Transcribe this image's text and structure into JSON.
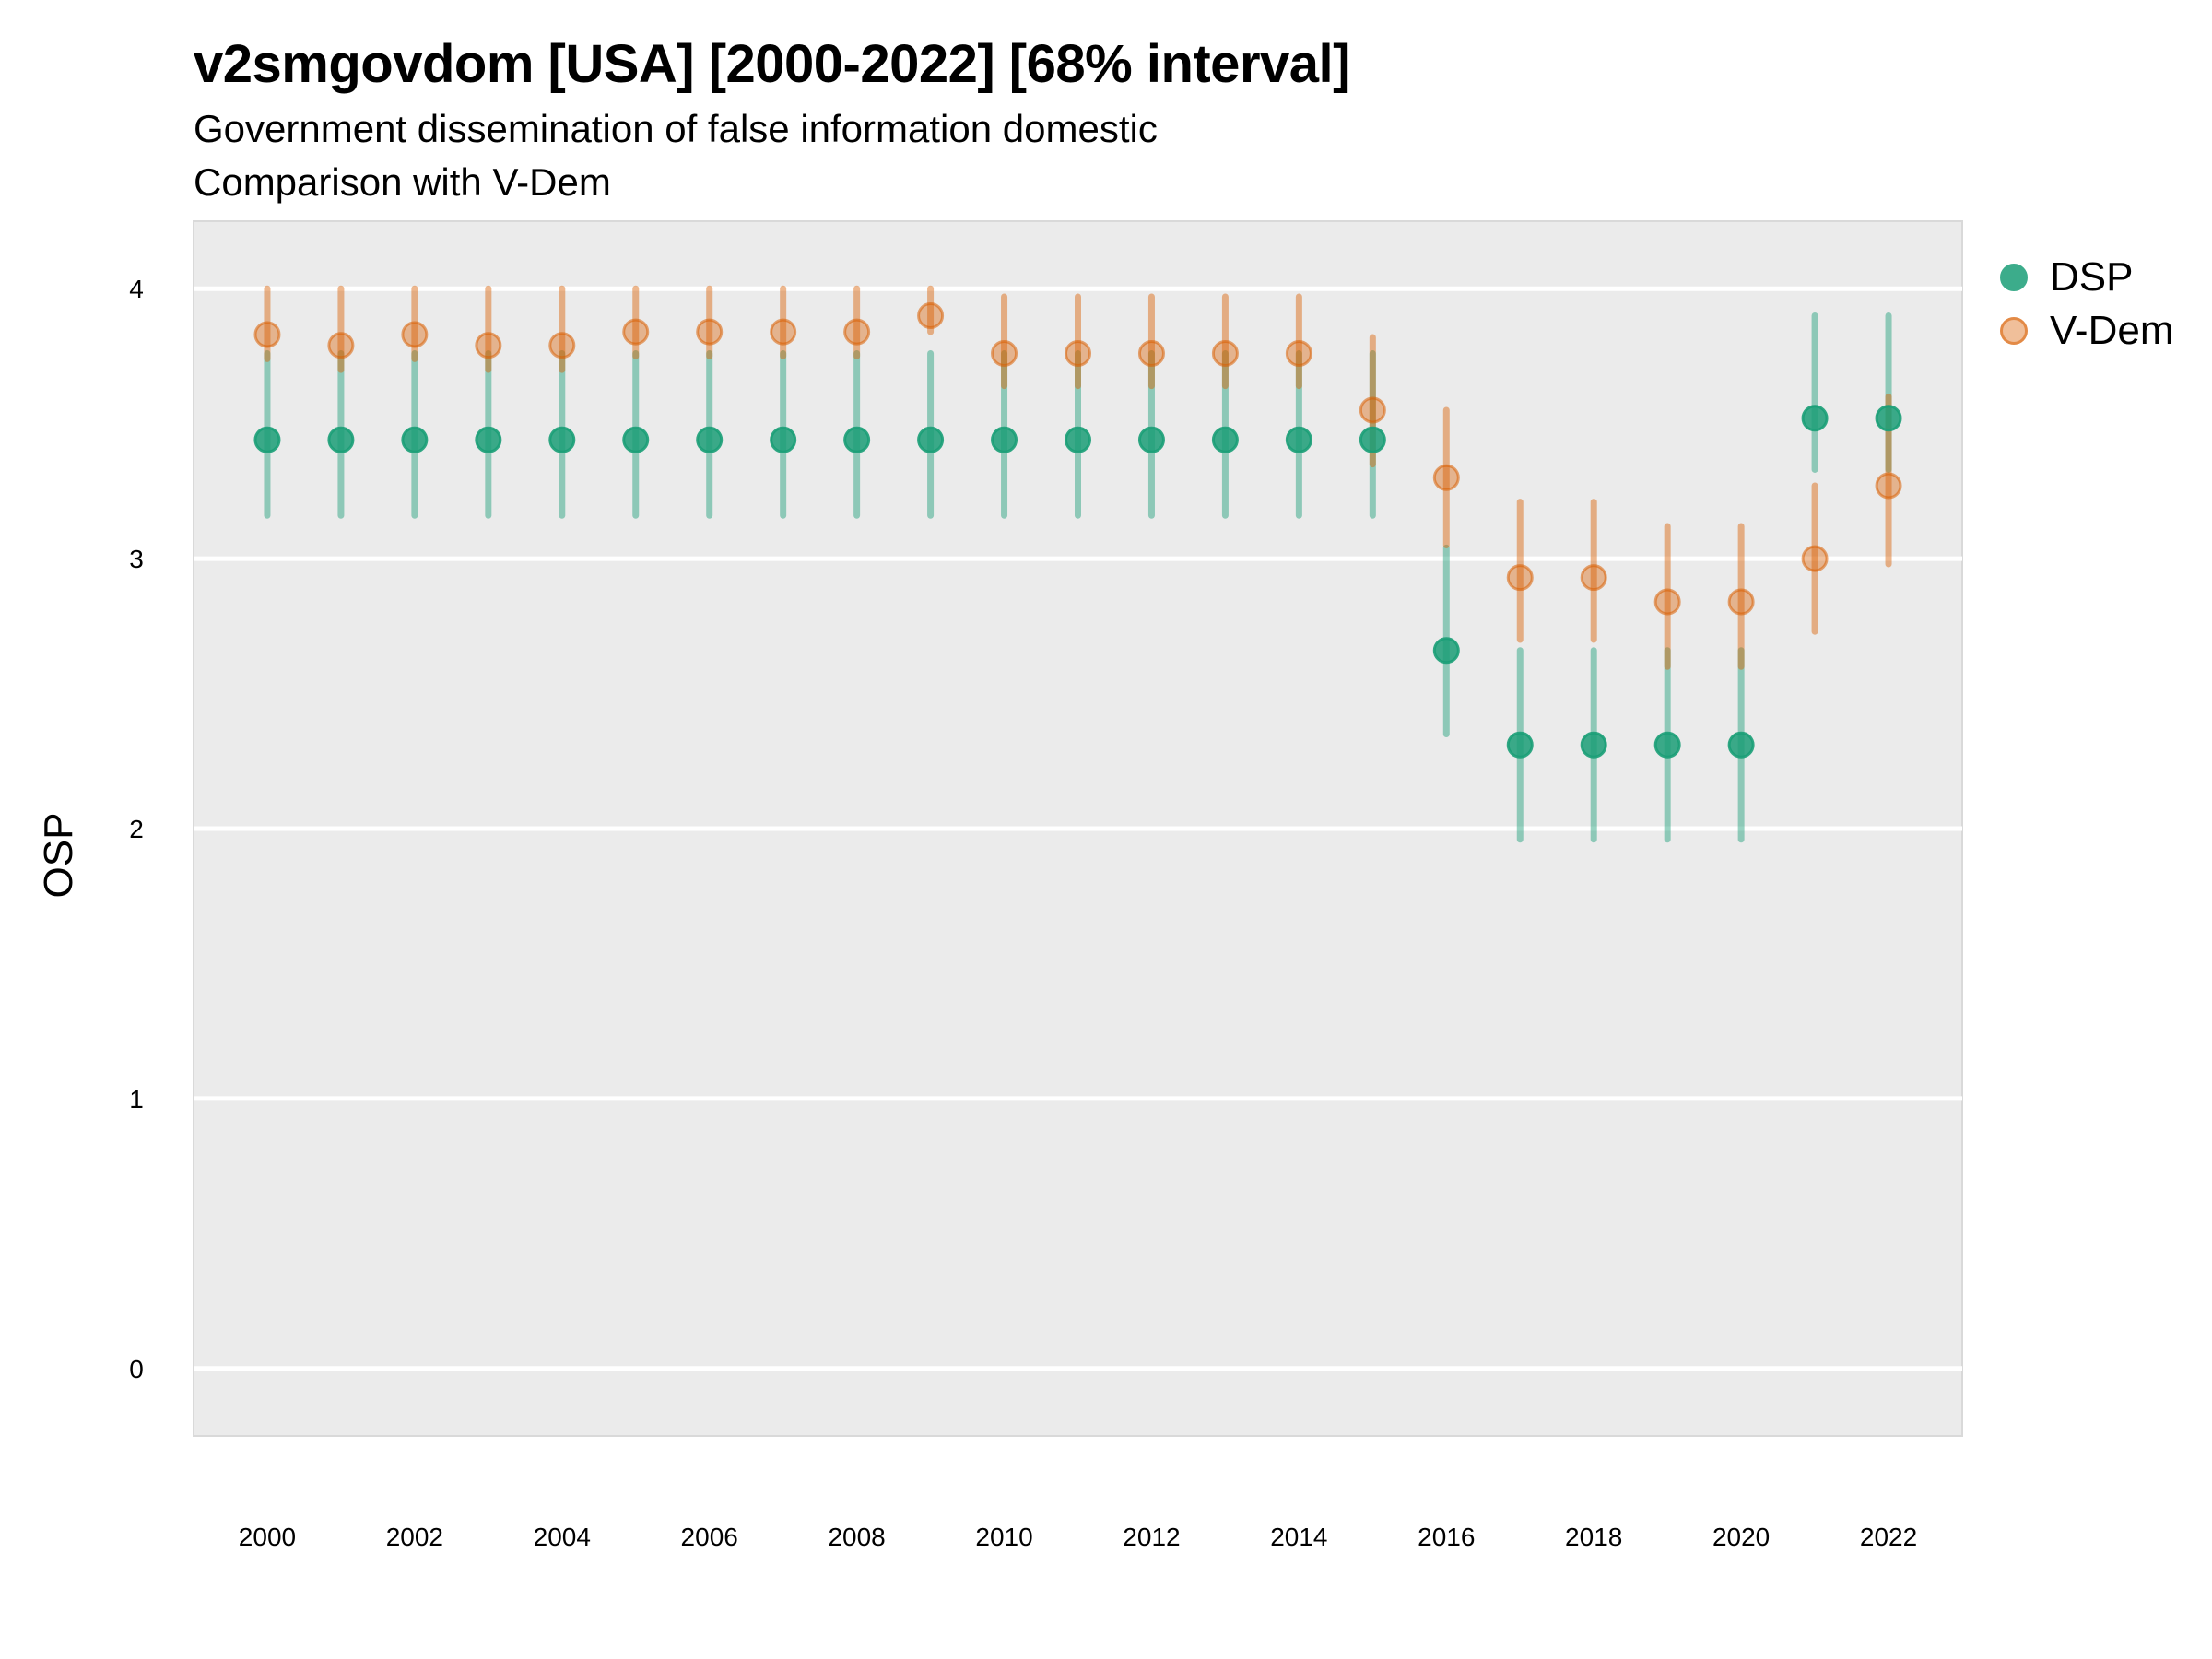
{
  "chart_data": {
    "type": "scatter",
    "subtype": "point-range",
    "title": "v2smgovdom [USA] [2000-2022] [68% interval]",
    "subtitle_lines": [
      "Government dissemination of false information domestic",
      "Comparison with V-Dem"
    ],
    "xlabel": "",
    "ylabel": "OSP",
    "xlim": [
      1999,
      2023
    ],
    "ylim": [
      -0.25,
      4.25
    ],
    "x_ticks": [
      2000,
      2002,
      2004,
      2006,
      2008,
      2010,
      2012,
      2014,
      2016,
      2018,
      2020,
      2022
    ],
    "y_ticks": [
      0,
      1,
      2,
      3,
      4
    ],
    "grid": true,
    "legend_position": "right",
    "x": [
      2000,
      2001,
      2002,
      2003,
      2004,
      2005,
      2006,
      2007,
      2008,
      2009,
      2010,
      2011,
      2012,
      2013,
      2014,
      2015,
      2016,
      2017,
      2018,
      2019,
      2020,
      2021,
      2022
    ],
    "series": [
      {
        "name": "DSP",
        "color": "#1b9e77",
        "values": [
          3.44,
          3.44,
          3.44,
          3.44,
          3.44,
          3.44,
          3.44,
          3.44,
          3.44,
          3.44,
          3.44,
          3.44,
          3.44,
          3.44,
          3.44,
          3.44,
          2.66,
          2.31,
          2.31,
          2.31,
          2.31,
          3.52,
          3.52
        ],
        "lower": [
          3.16,
          3.16,
          3.16,
          3.16,
          3.16,
          3.16,
          3.16,
          3.16,
          3.16,
          3.16,
          3.16,
          3.16,
          3.16,
          3.16,
          3.16,
          3.16,
          2.35,
          1.96,
          1.96,
          1.96,
          1.96,
          3.33,
          3.33
        ],
        "upper": [
          3.76,
          3.76,
          3.76,
          3.76,
          3.76,
          3.76,
          3.76,
          3.76,
          3.76,
          3.76,
          3.76,
          3.76,
          3.76,
          3.76,
          3.76,
          3.76,
          3.04,
          2.66,
          2.66,
          2.66,
          2.66,
          3.9,
          3.9
        ]
      },
      {
        "name": "V-Dem",
        "color": "#d95f02",
        "values": [
          3.83,
          3.79,
          3.83,
          3.79,
          3.79,
          3.84,
          3.84,
          3.84,
          3.84,
          3.9,
          3.76,
          3.76,
          3.76,
          3.76,
          3.76,
          3.55,
          3.3,
          2.93,
          2.93,
          2.84,
          2.84,
          3.0,
          3.27
        ],
        "lower": [
          3.74,
          3.7,
          3.74,
          3.7,
          3.7,
          3.75,
          3.75,
          3.75,
          3.75,
          3.84,
          3.64,
          3.64,
          3.64,
          3.64,
          3.64,
          3.35,
          3.05,
          2.7,
          2.7,
          2.6,
          2.6,
          2.73,
          2.98
        ],
        "upper": [
          4.0,
          4.0,
          4.0,
          4.0,
          4.0,
          4.0,
          4.0,
          4.0,
          4.0,
          4.0,
          3.97,
          3.97,
          3.97,
          3.97,
          3.97,
          3.82,
          3.55,
          3.21,
          3.21,
          3.12,
          3.12,
          3.27,
          3.6
        ]
      }
    ]
  }
}
